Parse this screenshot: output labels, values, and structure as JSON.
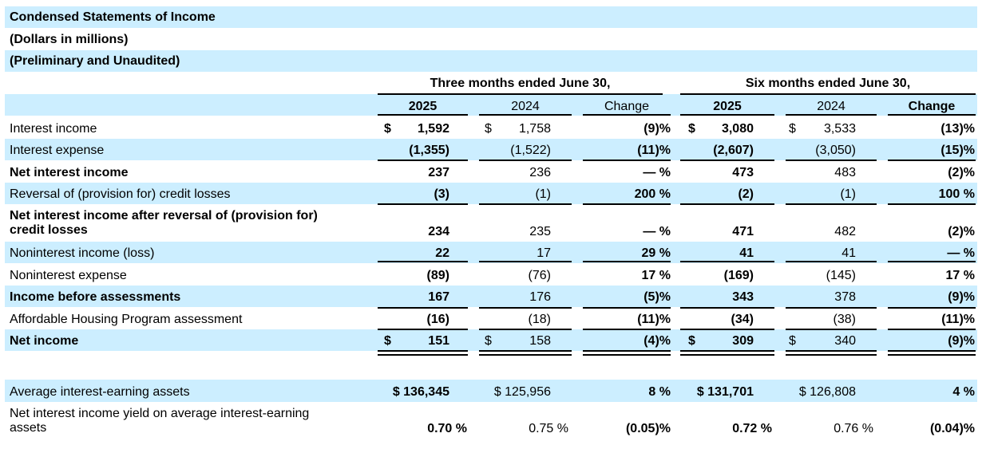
{
  "title": "Condensed Statements of Income",
  "subtitle": "(Dollars in millions)",
  "subtitle2": "(Preliminary and Unaudited)",
  "groups": [
    "Three months ended June 30,",
    "Six months ended June 30,"
  ],
  "columns": [
    "2025",
    "2024",
    "Change",
    "2025",
    "2024",
    "Change"
  ],
  "rows": [
    {
      "label": "Interest income",
      "bold": false,
      "dollar": true,
      "values": [
        "1,592",
        "1,758",
        "(9)%",
        "3,080",
        "3,533",
        "(13)%"
      ]
    },
    {
      "label": "Interest expense",
      "bold": false,
      "dollar": false,
      "values": [
        "(1,355)",
        "(1,522)",
        "(11)%",
        "(2,607)",
        "(3,050)",
        "(15)%"
      ]
    },
    {
      "label": "Net interest income",
      "bold": true,
      "dollar": false,
      "values": [
        "237",
        "236",
        "— %",
        "473",
        "483",
        "(2)%"
      ]
    },
    {
      "label": "Reversal of (provision for) credit losses",
      "bold": false,
      "dollar": false,
      "values": [
        "(3)",
        "(1)",
        "200 %",
        "(2)",
        "(1)",
        "100 %"
      ]
    },
    {
      "label": "Net interest income after reversal of (provision for) credit losses",
      "label_lines": [
        "Net interest income after reversal of (provision for)",
        "credit losses"
      ],
      "bold": true,
      "dollar": false,
      "values": [
        "234",
        "235",
        "— %",
        "471",
        "482",
        "(2)%"
      ]
    },
    {
      "label": "Noninterest income (loss)",
      "bold": false,
      "dollar": false,
      "values": [
        "22",
        "17",
        "29 %",
        "41",
        "41",
        "— %"
      ]
    },
    {
      "label": "Noninterest expense",
      "bold": false,
      "dollar": false,
      "values": [
        "(89)",
        "(76)",
        "17 %",
        "(169)",
        "(145)",
        "17 %"
      ]
    },
    {
      "label": "Income before assessments",
      "bold": true,
      "dollar": false,
      "values": [
        "167",
        "176",
        "(5)%",
        "343",
        "378",
        "(9)%"
      ]
    },
    {
      "label": "Affordable Housing Program assessment",
      "bold": false,
      "dollar": false,
      "values": [
        "(16)",
        "(18)",
        "(11)%",
        "(34)",
        "(38)",
        "(11)%"
      ]
    },
    {
      "label": "Net income",
      "bold": true,
      "dollar": true,
      "values": [
        "151",
        "158",
        "(4)%",
        "309",
        "340",
        "(9)%"
      ]
    }
  ],
  "extra_rows": [
    {
      "label": "Average interest-earning assets",
      "values": [
        "$ 136,345",
        "$ 125,956",
        "8 %",
        "$ 131,701",
        "$ 126,808",
        "4 %"
      ]
    },
    {
      "label": "Net interest income yield on average interest-earning assets",
      "label_lines": [
        "Net interest income yield on average interest-earning",
        "assets"
      ],
      "values": [
        "0.70 %",
        "0.75 %",
        "(0.05)%",
        "0.72 %",
        "0.76 %",
        "(0.04)%"
      ]
    }
  ],
  "dollar_sign": "$"
}
